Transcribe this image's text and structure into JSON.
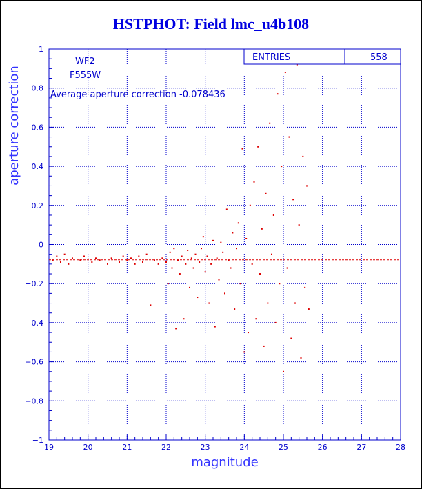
{
  "chart_data": {
    "type": "scatter",
    "title": "HSTPHOT: Field lmc_u4b108",
    "xlabel": "magnitude",
    "ylabel": "aperture correction",
    "xlim": [
      19,
      28
    ],
    "ylim": [
      -1,
      1
    ],
    "x_ticks": [
      "19",
      "20",
      "21",
      "22",
      "23",
      "24",
      "25",
      "26",
      "27",
      "28"
    ],
    "y_ticks": [
      "-1",
      "-0.8",
      "-0.6",
      "-0.4",
      "-0.2",
      "0",
      "0.2",
      "0.4",
      "0.6",
      "0.8",
      "1"
    ],
    "grid": true,
    "annotations": {
      "camera": "WF2",
      "filter": "F555W",
      "average_text": "Average aperture correction -0.078436"
    },
    "reference_line_y": -0.078436,
    "stats": {
      "label": "ENTRIES",
      "value": "558"
    },
    "colors": {
      "points": "#dd0000",
      "grid": "#0000cc",
      "title": "#0000e0",
      "axis_text": "#0000cc"
    },
    "points": [
      [
        19.1,
        -0.08
      ],
      [
        19.2,
        -0.06
      ],
      [
        19.3,
        -0.09
      ],
      [
        19.4,
        -0.05
      ],
      [
        19.5,
        -0.1
      ],
      [
        19.6,
        -0.07
      ],
      [
        19.8,
        -0.08
      ],
      [
        19.9,
        -0.06
      ],
      [
        20.1,
        -0.09
      ],
      [
        20.2,
        -0.07
      ],
      [
        20.3,
        -0.08
      ],
      [
        20.5,
        -0.1
      ],
      [
        20.6,
        -0.07
      ],
      [
        20.8,
        -0.09
      ],
      [
        20.9,
        -0.06
      ],
      [
        21.0,
        -0.08
      ],
      [
        21.1,
        -0.07
      ],
      [
        21.2,
        -0.1
      ],
      [
        21.3,
        -0.06
      ],
      [
        21.4,
        -0.09
      ],
      [
        21.5,
        -0.05
      ],
      [
        21.6,
        -0.31
      ],
      [
        21.7,
        -0.08
      ],
      [
        21.8,
        -0.1
      ],
      [
        21.9,
        -0.07
      ],
      [
        22.0,
        -0.09
      ],
      [
        22.05,
        -0.2
      ],
      [
        22.1,
        -0.04
      ],
      [
        22.15,
        -0.12
      ],
      [
        22.2,
        -0.02
      ],
      [
        22.25,
        -0.43
      ],
      [
        22.3,
        -0.08
      ],
      [
        22.35,
        -0.15
      ],
      [
        22.4,
        -0.06
      ],
      [
        22.45,
        -0.38
      ],
      [
        22.5,
        -0.1
      ],
      [
        22.55,
        -0.03
      ],
      [
        22.6,
        -0.22
      ],
      [
        22.65,
        -0.07
      ],
      [
        22.7,
        -0.12
      ],
      [
        22.75,
        -0.05
      ],
      [
        22.8,
        -0.27
      ],
      [
        22.85,
        -0.09
      ],
      [
        22.9,
        -0.02
      ],
      [
        22.95,
        0.04
      ],
      [
        23.0,
        -0.14
      ],
      [
        23.05,
        -0.06
      ],
      [
        23.1,
        -0.3
      ],
      [
        23.15,
        -0.1
      ],
      [
        23.2,
        0.02
      ],
      [
        23.25,
        -0.42
      ],
      [
        23.3,
        -0.07
      ],
      [
        23.35,
        -0.18
      ],
      [
        23.4,
        0.01
      ],
      [
        23.45,
        -0.04
      ],
      [
        23.5,
        -0.25
      ],
      [
        23.55,
        0.18
      ],
      [
        23.6,
        -0.08
      ],
      [
        23.65,
        -0.12
      ],
      [
        23.7,
        0.06
      ],
      [
        23.75,
        -0.33
      ],
      [
        23.8,
        -0.02
      ],
      [
        23.85,
        0.11
      ],
      [
        23.9,
        -0.2
      ],
      [
        23.95,
        0.49
      ],
      [
        24.0,
        -0.55
      ],
      [
        24.05,
        0.03
      ],
      [
        24.1,
        -0.45
      ],
      [
        24.15,
        0.2
      ],
      [
        24.2,
        -0.1
      ],
      [
        24.25,
        0.32
      ],
      [
        24.3,
        -0.38
      ],
      [
        24.35,
        0.5
      ],
      [
        24.4,
        -0.15
      ],
      [
        24.45,
        0.08
      ],
      [
        24.5,
        -0.52
      ],
      [
        24.55,
        0.26
      ],
      [
        24.6,
        -0.3
      ],
      [
        24.65,
        0.62
      ],
      [
        24.7,
        -0.05
      ],
      [
        24.75,
        0.15
      ],
      [
        24.8,
        -0.4
      ],
      [
        24.85,
        0.77
      ],
      [
        24.9,
        -0.2
      ],
      [
        24.95,
        0.4
      ],
      [
        25.0,
        -0.65
      ],
      [
        25.05,
        0.88
      ],
      [
        25.1,
        -0.12
      ],
      [
        25.15,
        0.55
      ],
      [
        25.2,
        -0.48
      ],
      [
        25.25,
        0.23
      ],
      [
        25.3,
        -0.3
      ],
      [
        25.35,
        0.92
      ],
      [
        25.4,
        0.1
      ],
      [
        25.45,
        -0.58
      ],
      [
        25.5,
        0.45
      ],
      [
        25.55,
        -0.22
      ],
      [
        25.6,
        0.3
      ],
      [
        25.65,
        -0.33
      ]
    ]
  }
}
